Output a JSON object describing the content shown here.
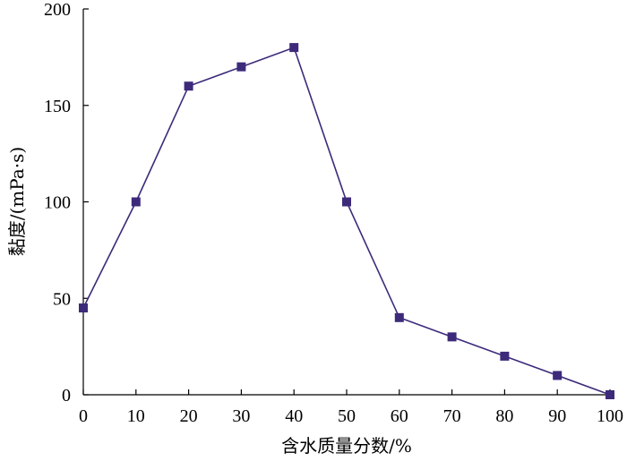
{
  "chart_data": {
    "type": "line",
    "title": "",
    "xlabel": "含水质量分数/%",
    "ylabel": "黏度/(mPa·s)",
    "x": [
      0,
      10,
      20,
      30,
      40,
      50,
      60,
      70,
      80,
      90,
      100
    ],
    "series": [
      {
        "values": [
          45,
          100,
          160,
          170,
          180,
          100,
          40,
          30,
          20,
          10,
          0
        ],
        "color": "#3d2a7a",
        "marker": "square"
      }
    ],
    "xlim": [
      0,
      100
    ],
    "ylim": [
      0,
      200
    ],
    "xticks": [
      "0",
      "10",
      "20",
      "30",
      "40",
      "50",
      "60",
      "70",
      "80",
      "90",
      "100"
    ],
    "yticks": [
      "0",
      "50",
      "100",
      "150",
      "200"
    ],
    "grid": false,
    "legend": "none"
  }
}
